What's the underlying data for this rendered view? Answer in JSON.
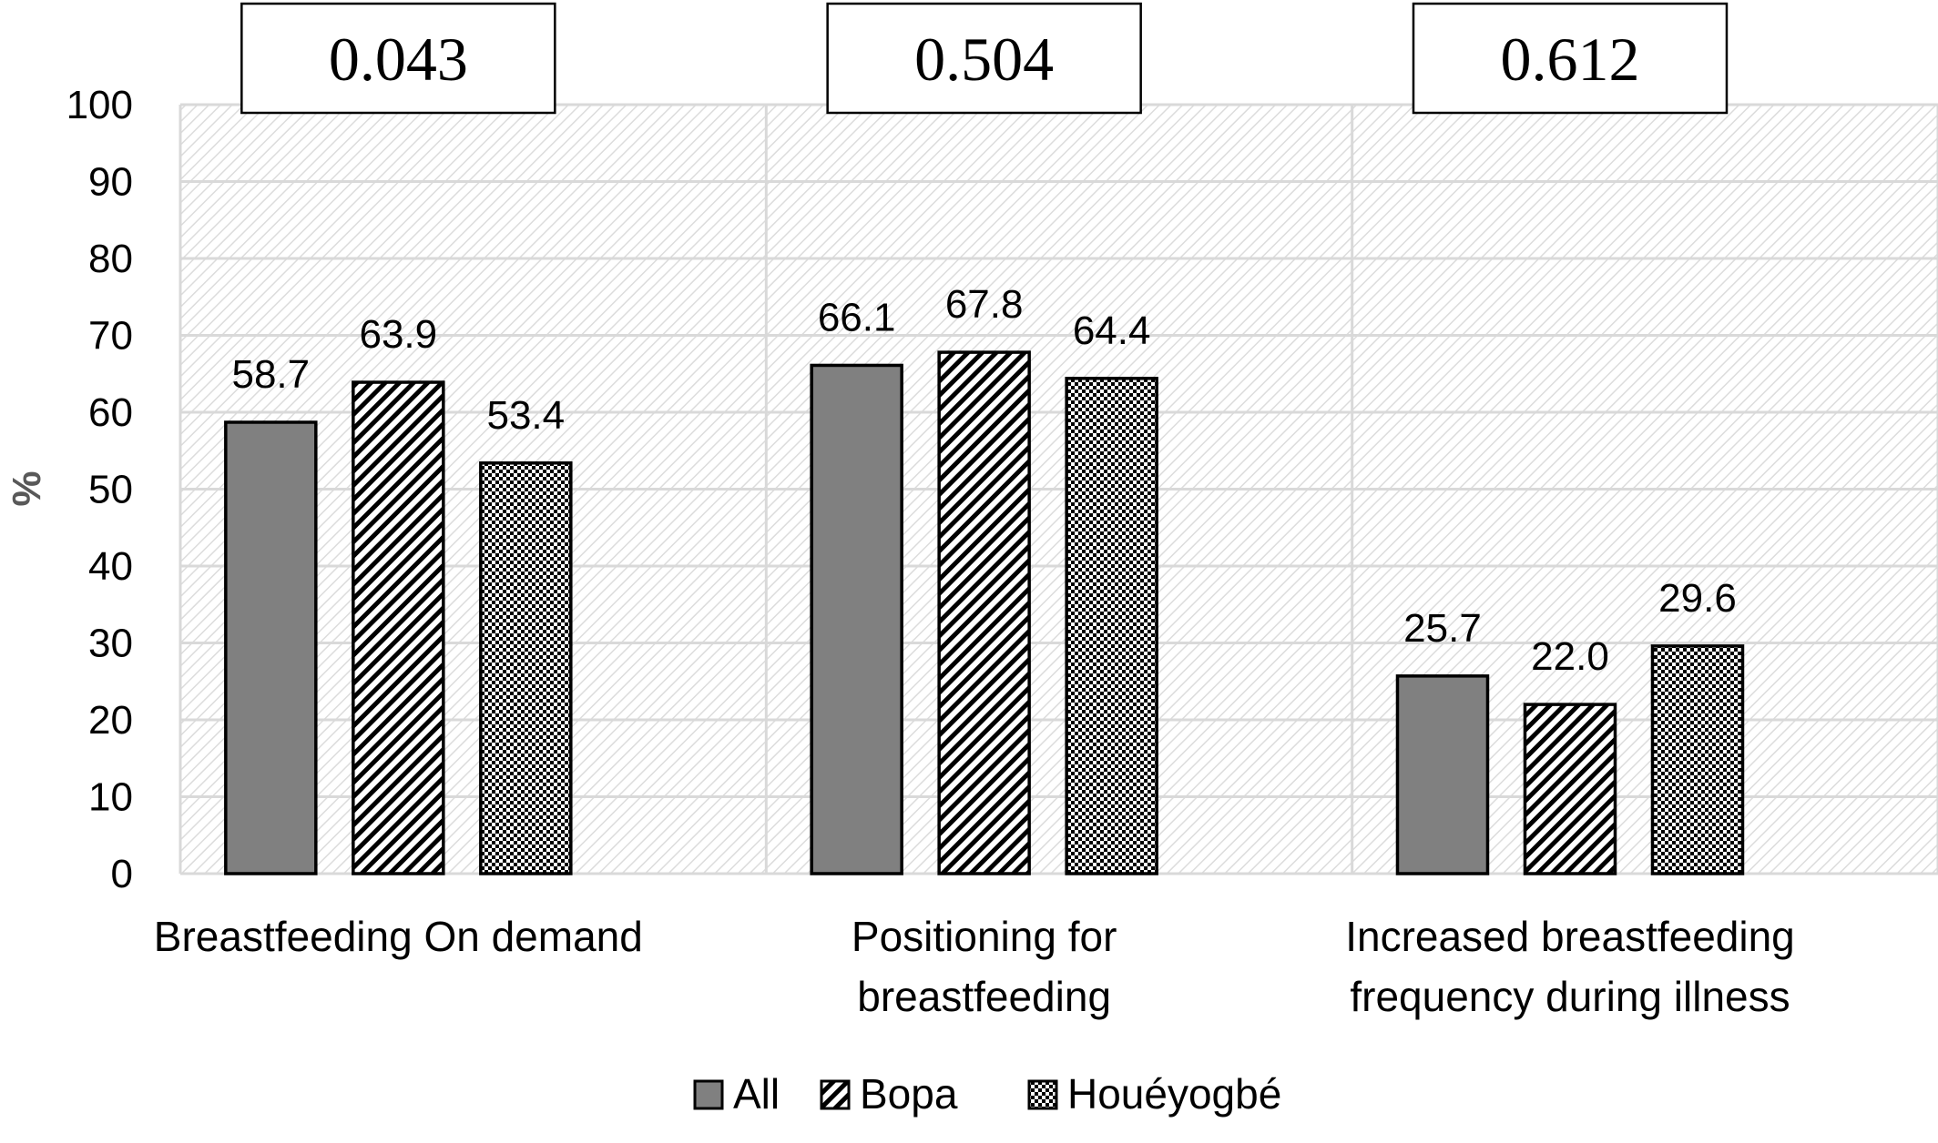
{
  "chart_data": {
    "type": "bar",
    "title": "",
    "xlabel": "",
    "ylabel": "%",
    "ylim": [
      0,
      100
    ],
    "yticks": [
      "0",
      "10",
      "20",
      "30",
      "40",
      "50",
      "60",
      "70",
      "80",
      "90",
      "100"
    ],
    "grid": true,
    "legend_position": "bottom",
    "categories": [
      [
        "Breastfeeding On demand"
      ],
      [
        "Positioning for",
        "breastfeeding"
      ],
      [
        "Increased breastfeeding",
        "frequency during illness"
      ]
    ],
    "p_values": [
      "0.043",
      "0.504",
      "0.612"
    ],
    "series": [
      {
        "name": "All",
        "pattern": "solid-gray",
        "values": [
          58.7,
          66.1,
          25.7
        ],
        "labels": [
          "58.7",
          "66.1",
          "25.7"
        ]
      },
      {
        "name": "Bopa",
        "pattern": "diagonal-stripes",
        "values": [
          63.9,
          67.8,
          22.0
        ],
        "labels": [
          "63.9",
          "67.8",
          "22.0"
        ]
      },
      {
        "name": "Houéyogbé",
        "pattern": "checkerboard",
        "values": [
          53.4,
          64.4,
          29.6
        ],
        "labels": [
          "53.4",
          "64.4",
          "29.6"
        ]
      }
    ],
    "colors": {
      "bar_fill": "#808080",
      "bar_stroke": "#000000",
      "grid": "#d9d9d9",
      "plot_hatch": "#e0e0e0",
      "axis_text": "#000000",
      "ylabel_text": "#595959"
    }
  }
}
